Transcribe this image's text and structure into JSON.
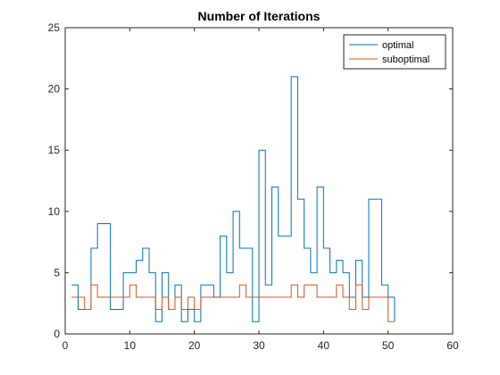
{
  "chart_data": {
    "type": "line",
    "style": "stairs",
    "title": "Number of Iterations",
    "xlabel": "",
    "ylabel": "",
    "xlim": [
      0,
      60
    ],
    "ylim": [
      0,
      25
    ],
    "xticks": [
      0,
      10,
      20,
      30,
      40,
      50,
      60
    ],
    "yticks": [
      0,
      5,
      10,
      15,
      20,
      25
    ],
    "grid": false,
    "legend_location": "top-right",
    "series": [
      {
        "name": "optimal",
        "color": "#0072BD",
        "x": [
          1,
          2,
          3,
          4,
          5,
          6,
          7,
          8,
          9,
          10,
          11,
          12,
          13,
          14,
          15,
          16,
          17,
          18,
          19,
          20,
          21,
          22,
          23,
          24,
          25,
          26,
          27,
          28,
          29,
          30,
          31,
          32,
          33,
          34,
          35,
          36,
          37,
          38,
          39,
          40,
          41,
          42,
          43,
          44,
          45,
          46,
          47,
          48,
          49,
          50,
          51
        ],
        "y": [
          4,
          2,
          2,
          7,
          9,
          9,
          2,
          2,
          5,
          5,
          6,
          7,
          5,
          1,
          5,
          2,
          4,
          1,
          2,
          1,
          4,
          4,
          3,
          8,
          5,
          10,
          7,
          7,
          1,
          15,
          4,
          12,
          8,
          8,
          21,
          11,
          7,
          5,
          12,
          7,
          5,
          6,
          5,
          3,
          6,
          3,
          11,
          11,
          4,
          3,
          1
        ]
      },
      {
        "name": "suboptimal",
        "color": "#D95319",
        "x": [
          1,
          2,
          3,
          4,
          5,
          6,
          7,
          8,
          9,
          10,
          11,
          12,
          13,
          14,
          15,
          16,
          17,
          18,
          19,
          20,
          21,
          22,
          23,
          24,
          25,
          26,
          27,
          28,
          29,
          30,
          31,
          32,
          33,
          34,
          35,
          36,
          37,
          38,
          39,
          40,
          41,
          42,
          43,
          44,
          45,
          46,
          47,
          48,
          49,
          50,
          51
        ],
        "y": [
          3,
          3,
          2,
          4,
          3,
          3,
          3,
          3,
          3,
          4,
          3,
          3,
          3,
          2,
          3,
          2,
          3,
          2,
          3,
          2,
          3,
          3,
          3,
          3,
          3,
          3,
          4,
          3,
          3,
          3,
          3,
          3,
          3,
          3,
          4,
          3,
          4,
          4,
          3,
          3,
          3,
          4,
          3,
          2,
          4,
          2,
          3,
          3,
          3,
          1,
          1
        ]
      }
    ]
  }
}
